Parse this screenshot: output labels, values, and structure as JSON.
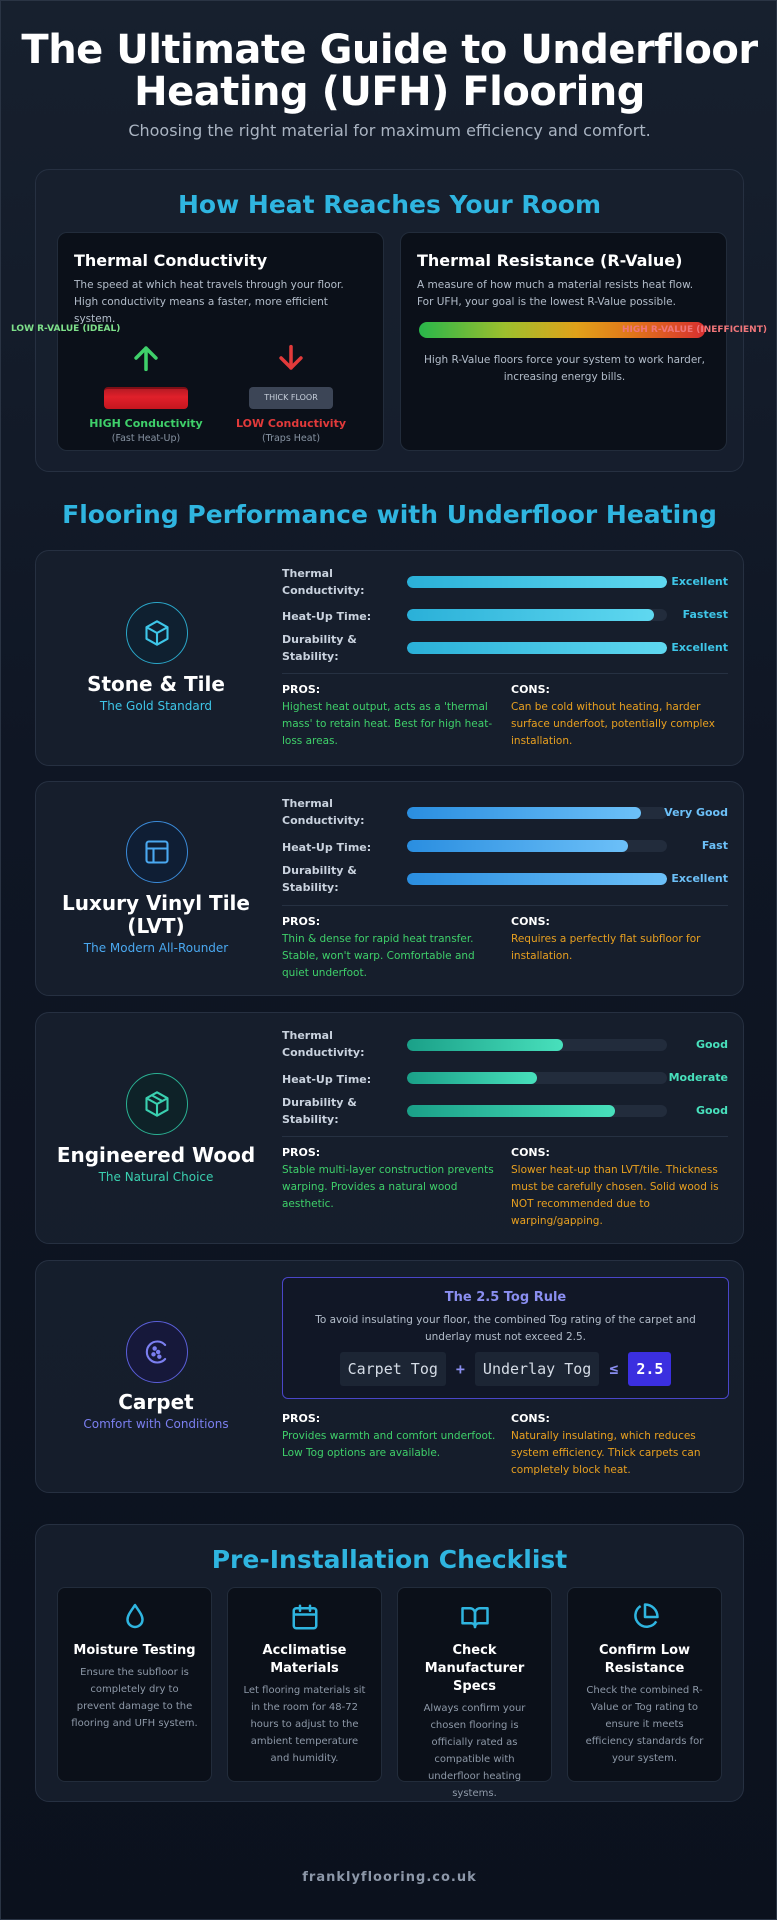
{
  "header": {
    "title": "The Ultimate Guide to Underfloor Heating (UFH) Flooring",
    "subtitle": "Choosing the right material for maximum efficiency and comfort."
  },
  "heat": {
    "section_title": "How Heat Reaches Your Room",
    "conductivity": {
      "title": "Thermal Conductivity",
      "desc": "The speed at which heat travels through your floor. High conductivity means a faster, more efficient system.",
      "ideal_tag": "LOW R-VALUE (IDEAL)",
      "high_label": "HIGH Conductivity",
      "high_note": "(Fast Heat-Up)",
      "thick_floor": "THICK FLOOR",
      "low_label": "LOW Conductivity",
      "low_note": "(Traps Heat)"
    },
    "resistance": {
      "title": "Thermal Resistance (R-Value)",
      "desc": "A measure of how much a material resists heat flow. For UFH, your goal is the lowest R-Value possible.",
      "bar_tag": "HIGH R-VALUE (INEFFICIENT)",
      "note": "High R-Value floors force your system to work harder, increasing energy bills."
    }
  },
  "performance": {
    "section_title": "Flooring Performance with Underfloor Heating",
    "metric_labels": [
      "Thermal Conductivity:",
      "Heat-Up Time:",
      "Durability & Stability:"
    ],
    "pros_label": "PROS:",
    "cons_label": "CONS:",
    "floors": [
      {
        "name": "Stone & Tile",
        "tagline": "The Gold Standard",
        "icon": "cube-icon",
        "accent": "#3ec6e8",
        "ratings": [
          {
            "text": "Excellent",
            "level": 1.0
          },
          {
            "text": "Fastest",
            "level": 0.95
          },
          {
            "text": "Excellent",
            "level": 1.0
          }
        ],
        "pros": "Highest heat output, acts as a 'thermal mass' to retain heat. Best for high heat-loss areas.",
        "cons": "Can be cold without heating, harder surface underfoot, potentially complex installation."
      },
      {
        "name": "Luxury Vinyl Tile (LVT)",
        "tagline": "The Modern All-Rounder",
        "icon": "layout-panel-icon",
        "accent": "#4aa8f0",
        "ratings": [
          {
            "text": "Very Good",
            "level": 0.9
          },
          {
            "text": "Fast",
            "level": 0.85
          },
          {
            "text": "Excellent",
            "level": 1.0
          }
        ],
        "pros": "Thin & dense for rapid heat transfer. Stable, won't warp. Comfortable and quiet underfoot.",
        "cons": "Requires a perfectly flat subfloor for installation."
      },
      {
        "name": "Engineered Wood",
        "tagline": "The Natural Choice",
        "icon": "box-icon",
        "accent": "#3ad0b0",
        "ratings": [
          {
            "text": "Good",
            "level": 0.6
          },
          {
            "text": "Moderate",
            "level": 0.5
          },
          {
            "text": "Good",
            "level": 0.8
          }
        ],
        "pros": "Stable multi-layer construction prevents warping. Provides a natural wood aesthetic.",
        "cons": "Slower heat-up than LVT/tile. Thickness must be carefully chosen. Solid wood is NOT recommended due to warping/gapping."
      }
    ],
    "carpet": {
      "name": "Carpet",
      "tagline": "Comfort with Conditions",
      "icon": "texture-icon",
      "accent": "#7b7ff0",
      "tog_title": "The 2.5 Tog Rule",
      "tog_desc": "To avoid insulating your floor, the combined Tog rating of the carpet and underlay must not exceed 2.5.",
      "tog_a": "Carpet Tog",
      "tog_plus": "+",
      "tog_b": "Underlay Tog",
      "tog_le": "≤",
      "tog_value": "2.5",
      "pros": "Provides warmth and comfort underfoot. Low Tog options are available.",
      "cons": "Naturally insulating, which reduces system efficiency. Thick carpets can completely block heat."
    }
  },
  "checklist": {
    "section_title": "Pre-Installation Checklist",
    "items": [
      {
        "icon": "droplet-icon",
        "title": "Moisture Testing",
        "desc": "Ensure the subfloor is completely dry to prevent damage to the flooring and UFH system."
      },
      {
        "icon": "calendar-icon",
        "title": "Acclimatise Materials",
        "desc": "Let flooring materials sit in the room for 48-72 hours to adjust to the ambient temperature and humidity."
      },
      {
        "icon": "book-icon",
        "title": "Check Manufacturer Specs",
        "desc": "Always confirm your chosen flooring is officially rated as compatible with underfloor heating systems."
      },
      {
        "icon": "pie-chart-icon",
        "title": "Confirm Low Resistance",
        "desc": "Check the combined R-Value or Tog rating to ensure it meets efficiency standards for your system."
      }
    ]
  },
  "footer": {
    "site": "franklyflooring.co.uk"
  }
}
